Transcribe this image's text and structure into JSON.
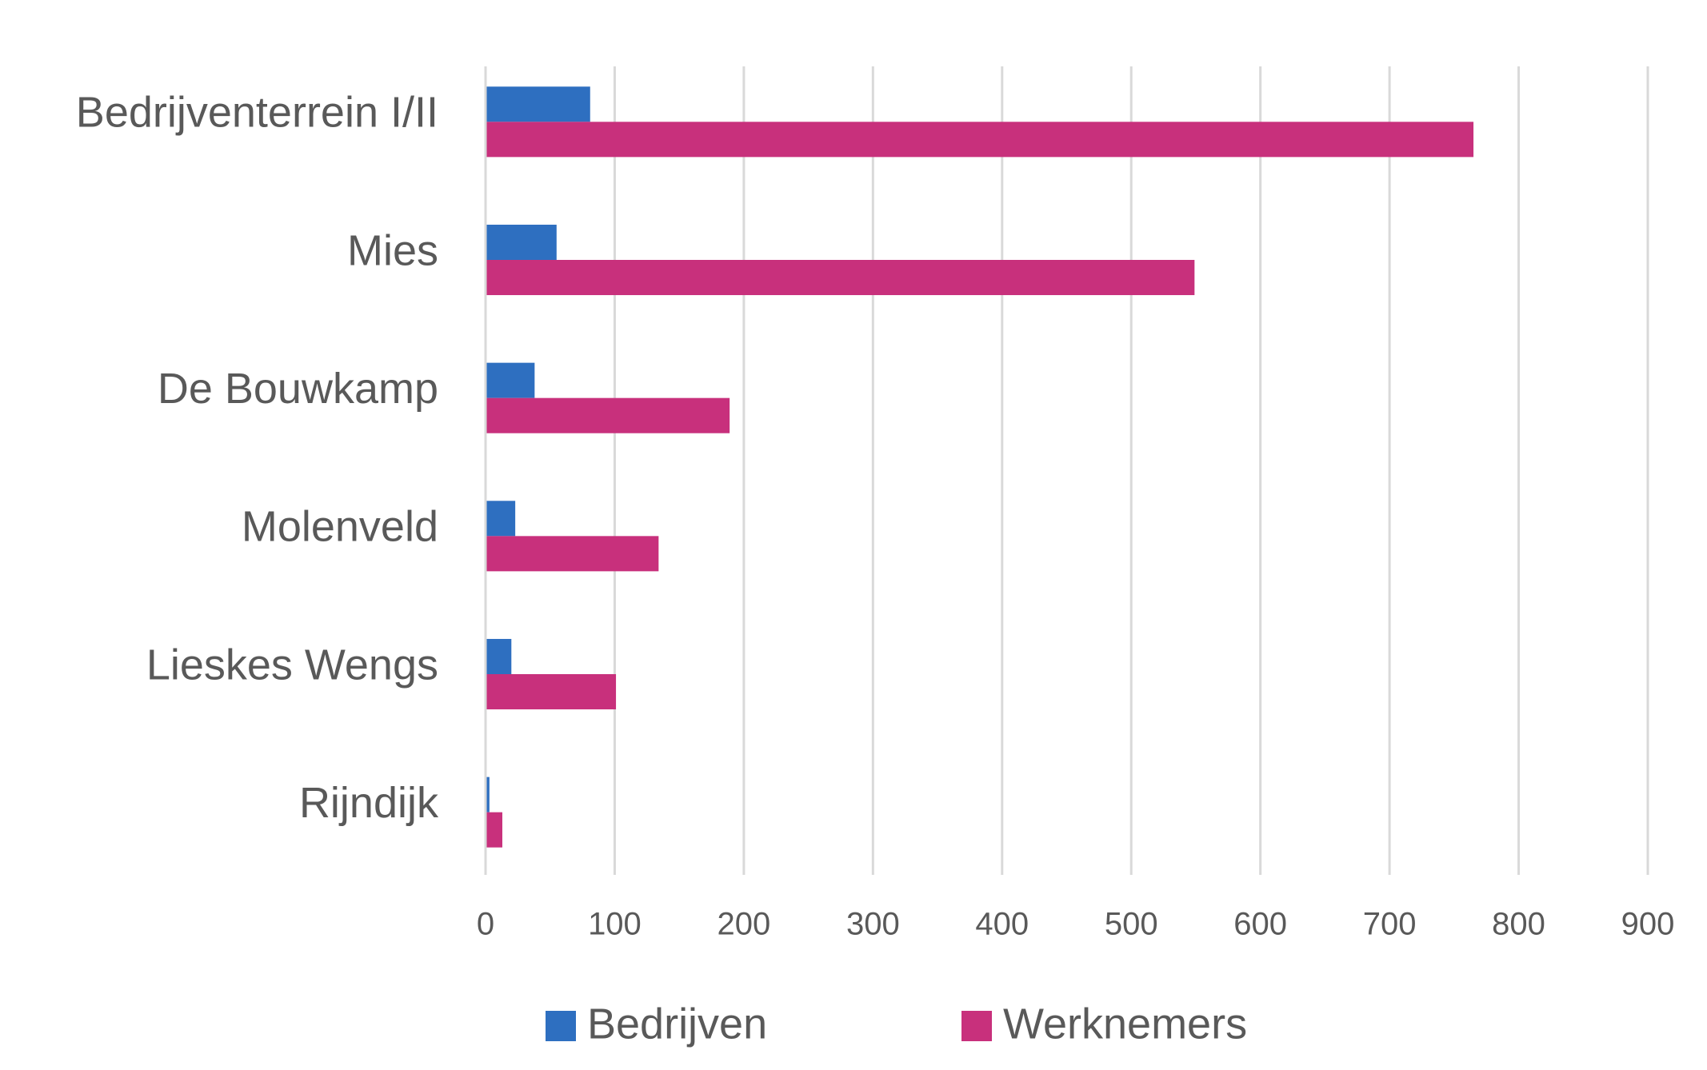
{
  "chart_data": {
    "type": "barh",
    "categories": [
      "Bedrijventerrein I/II",
      "Mies",
      "De Bouwkamp",
      "Molenveld",
      "Lieskes Wengs",
      "Rijndijk"
    ],
    "series": [
      {
        "name": "Bedrijven",
        "color": "#2e6fc0",
        "values": [
          81,
          55,
          38,
          23,
          20,
          3
        ]
      },
      {
        "name": "Werknemers",
        "color": "#c8307c",
        "values": [
          765,
          549,
          189,
          134,
          101,
          13
        ]
      }
    ],
    "xlim": [
      0,
      900
    ],
    "xticks": [
      0,
      100,
      200,
      300,
      400,
      500,
      600,
      700,
      800,
      900
    ],
    "grid": true,
    "legend": "bottom"
  }
}
